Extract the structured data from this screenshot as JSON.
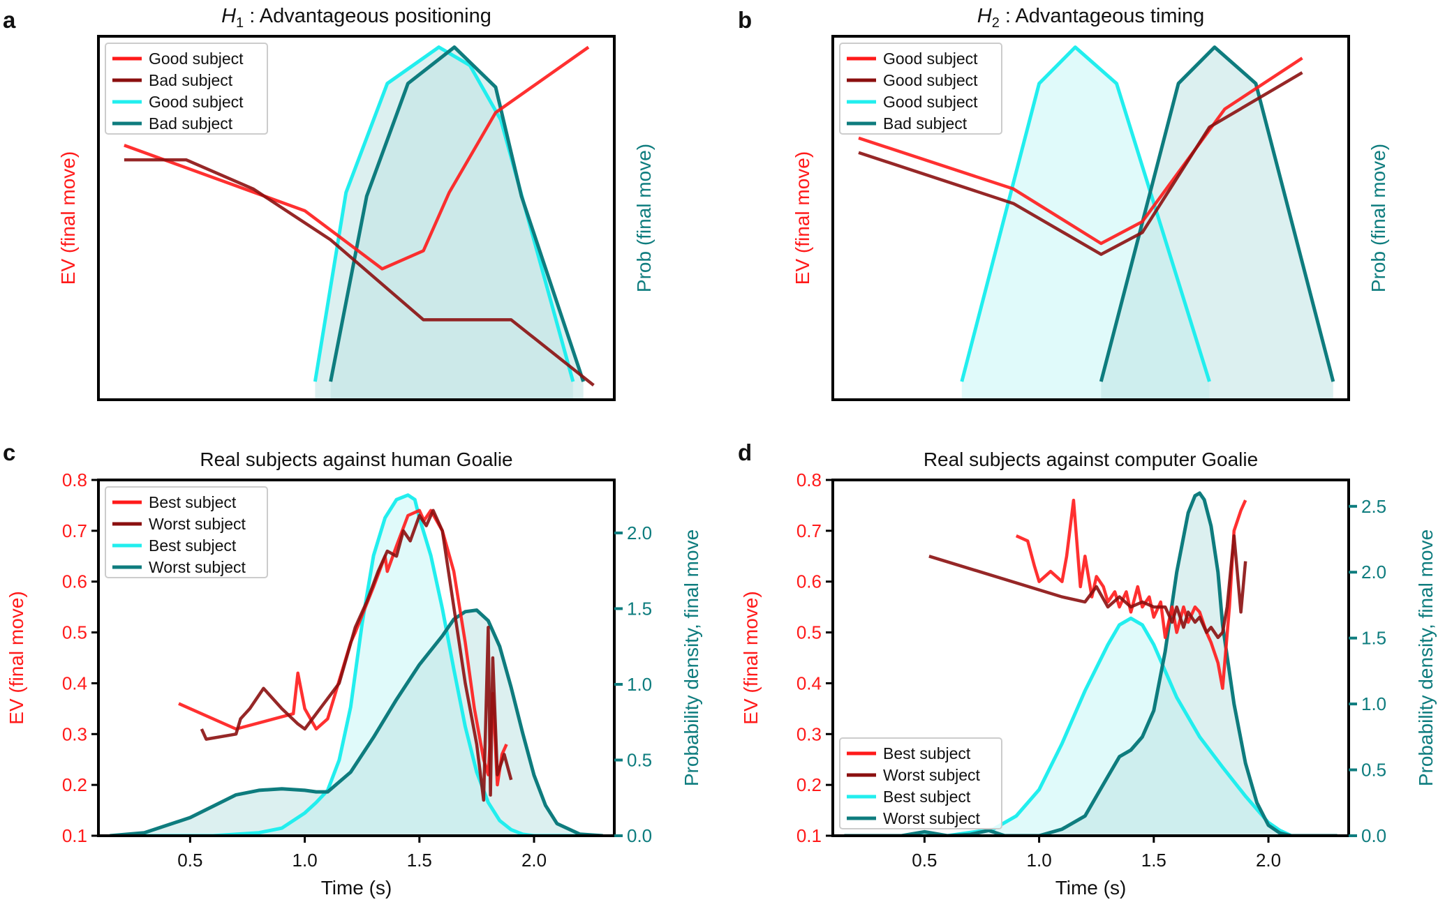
{
  "figure": {
    "colors": {
      "red": "#ff1a1a",
      "dark_red": "#8b0f0f",
      "cyan": "#22eeee",
      "teal": "#0e7c7e",
      "cyan_fill": "#c6f6f6",
      "teal_fill": "#bfe4e4",
      "text": "#111111"
    }
  },
  "chart_data": [
    {
      "id": "a",
      "panel_letter": "a",
      "type": "line",
      "title_symbol": "H",
      "title_subscript": "1",
      "title_rest": " : Advantageous positioning",
      "ylabel_left": "EV (final move)",
      "ylabel_right": "Prob (final move)",
      "xlim": [
        0,
        1
      ],
      "ylim_left": [
        0,
        1
      ],
      "ylim_right": [
        0,
        1
      ],
      "show_ticks": false,
      "legend": [
        "Good subject",
        "Bad subject",
        "Good subject",
        "Bad subject"
      ],
      "ev_series": [
        {
          "name": "Good subject",
          "color_key": "red",
          "x": [
            0.05,
            0.4,
            0.55,
            0.63,
            0.68,
            0.77,
            0.95
          ],
          "y": [
            0.7,
            0.52,
            0.36,
            0.41,
            0.57,
            0.79,
            0.97
          ]
        },
        {
          "name": "Bad subject",
          "color_key": "dark_red",
          "x": [
            0.05,
            0.17,
            0.3,
            0.45,
            0.63,
            0.8,
            0.96
          ],
          "y": [
            0.66,
            0.66,
            0.58,
            0.44,
            0.22,
            0.22,
            0.04
          ]
        }
      ],
      "prob_series": [
        {
          "name": "Good subject",
          "color_key": "cyan",
          "fill_key": "teal_fill",
          "x": [
            0.42,
            0.48,
            0.56,
            0.66,
            0.72,
            0.78,
            0.92
          ],
          "y": [
            0.05,
            0.57,
            0.87,
            0.97,
            0.92,
            0.77,
            0.05
          ]
        },
        {
          "name": "Bad subject",
          "color_key": "teal",
          "fill_key": "teal_fill",
          "x": [
            0.45,
            0.52,
            0.6,
            0.69,
            0.77,
            0.82,
            0.94
          ],
          "y": [
            0.05,
            0.56,
            0.87,
            0.97,
            0.86,
            0.56,
            0.05
          ]
        }
      ]
    },
    {
      "id": "b",
      "panel_letter": "b",
      "type": "line",
      "title_symbol": "H",
      "title_subscript": "2",
      "title_rest": " : Advantageous timing",
      "ylabel_left": "EV (final move)",
      "ylabel_right": "Prob (final move)",
      "xlim": [
        0,
        1
      ],
      "ylim_left": [
        0,
        1
      ],
      "ylim_right": [
        0,
        1
      ],
      "show_ticks": false,
      "legend": [
        "Good subject",
        "Good subject",
        "Good subject",
        "Bad subject"
      ],
      "ev_series": [
        {
          "name": "Good subject",
          "color_key": "red",
          "x": [
            0.05,
            0.35,
            0.52,
            0.6,
            0.76,
            0.91
          ],
          "y": [
            0.72,
            0.58,
            0.43,
            0.49,
            0.8,
            0.94
          ]
        },
        {
          "name": "Good subject",
          "color_key": "dark_red",
          "x": [
            0.05,
            0.35,
            0.52,
            0.6,
            0.73,
            0.91
          ],
          "y": [
            0.68,
            0.54,
            0.4,
            0.46,
            0.75,
            0.9
          ]
        }
      ],
      "prob_series": [
        {
          "name": "Good subject",
          "color_key": "cyan",
          "fill_key": "cyan_fill",
          "x": [
            0.25,
            0.4,
            0.47,
            0.55,
            0.73
          ],
          "y": [
            0.05,
            0.87,
            0.97,
            0.87,
            0.05
          ]
        },
        {
          "name": "Bad subject",
          "color_key": "teal",
          "fill_key": "teal_fill",
          "x": [
            0.52,
            0.67,
            0.74,
            0.82,
            0.97
          ],
          "y": [
            0.05,
            0.87,
            0.97,
            0.87,
            0.05
          ]
        }
      ]
    },
    {
      "id": "c",
      "panel_letter": "c",
      "type": "line",
      "title": "Real subjects against human Goalie",
      "xlabel": "Time (s)",
      "ylabel_left": "EV (final move)",
      "ylabel_right": "Probability density, final move",
      "xlim": [
        0.1,
        2.35
      ],
      "ylim_left": [
        0.1,
        0.8
      ],
      "ylim_right": [
        0.0,
        2.35
      ],
      "show_ticks": true,
      "xticks": [
        0.5,
        1.0,
        1.5,
        2.0
      ],
      "xtick_labels": [
        "0.5",
        "1.0",
        "1.5",
        "2.0"
      ],
      "yticks_left": [
        0.1,
        0.2,
        0.3,
        0.4,
        0.5,
        0.6,
        0.7,
        0.8
      ],
      "ytick_labels_left": [
        "0.1",
        "0.2",
        "0.3",
        "0.4",
        "0.5",
        "0.6",
        "0.7",
        "0.8"
      ],
      "yticks_right": [
        0.0,
        0.5,
        1.0,
        1.5,
        2.0
      ],
      "ytick_labels_right": [
        "0.0",
        "0.5",
        "1.0",
        "1.5",
        "2.0"
      ],
      "legend": [
        "Best subject",
        "Worst subject",
        "Best subject",
        "Worst subject"
      ],
      "ev_series": [
        {
          "name": "Best subject",
          "color_key": "red",
          "x": [
            0.45,
            0.7,
            0.95,
            0.97,
            1.0,
            1.05,
            1.1,
            1.2,
            1.22,
            1.3,
            1.35,
            1.36,
            1.4,
            1.45,
            1.5,
            1.52,
            1.55,
            1.6,
            1.65,
            1.7,
            1.74,
            1.78,
            1.8,
            1.82,
            1.84,
            1.86,
            1.88
          ],
          "y": [
            0.36,
            0.31,
            0.34,
            0.42,
            0.35,
            0.31,
            0.33,
            0.48,
            0.5,
            0.59,
            0.65,
            0.62,
            0.67,
            0.73,
            0.74,
            0.72,
            0.74,
            0.7,
            0.62,
            0.48,
            0.35,
            0.25,
            0.22,
            0.38,
            0.2,
            0.26,
            0.28
          ]
        },
        {
          "name": "Worst subject",
          "color_key": "dark_red",
          "x": [
            0.55,
            0.57,
            0.7,
            0.72,
            0.76,
            0.82,
            0.9,
            0.97,
            1.0,
            1.05,
            1.15,
            1.22,
            1.27,
            1.32,
            1.36,
            1.4,
            1.43,
            1.46,
            1.5,
            1.53,
            1.56,
            1.6,
            1.65,
            1.7,
            1.75,
            1.78,
            1.8,
            1.81,
            1.82,
            1.84,
            1.87,
            1.9
          ],
          "y": [
            0.31,
            0.29,
            0.3,
            0.33,
            0.35,
            0.39,
            0.35,
            0.32,
            0.31,
            0.34,
            0.4,
            0.51,
            0.56,
            0.62,
            0.66,
            0.65,
            0.7,
            0.68,
            0.73,
            0.71,
            0.74,
            0.7,
            0.55,
            0.4,
            0.28,
            0.17,
            0.51,
            0.18,
            0.45,
            0.22,
            0.26,
            0.21
          ]
        }
      ],
      "prob_series": [
        {
          "name": "Best subject",
          "color_key": "cyan",
          "fill_key": "cyan_fill",
          "x": [
            0.15,
            0.6,
            0.8,
            0.9,
            1.0,
            1.05,
            1.1,
            1.15,
            1.2,
            1.25,
            1.3,
            1.35,
            1.4,
            1.45,
            1.48,
            1.5,
            1.55,
            1.6,
            1.65,
            1.7,
            1.75,
            1.8,
            1.85,
            1.9,
            1.95,
            2.0,
            2.1,
            2.3
          ],
          "y": [
            0.0,
            0.0,
            0.02,
            0.05,
            0.15,
            0.22,
            0.3,
            0.5,
            0.85,
            1.4,
            1.85,
            2.1,
            2.22,
            2.25,
            2.22,
            2.1,
            1.85,
            1.5,
            1.1,
            0.72,
            0.42,
            0.22,
            0.1,
            0.04,
            0.01,
            0.0,
            0.0,
            0.0
          ]
        },
        {
          "name": "Worst subject",
          "color_key": "teal",
          "fill_key": "teal_fill",
          "x": [
            0.15,
            0.3,
            0.5,
            0.7,
            0.8,
            0.9,
            1.0,
            1.05,
            1.1,
            1.2,
            1.3,
            1.4,
            1.5,
            1.6,
            1.65,
            1.7,
            1.75,
            1.8,
            1.85,
            1.9,
            1.95,
            2.0,
            2.05,
            2.1,
            2.2,
            2.3
          ],
          "y": [
            0.0,
            0.02,
            0.12,
            0.27,
            0.3,
            0.31,
            0.3,
            0.29,
            0.29,
            0.42,
            0.65,
            0.9,
            1.13,
            1.32,
            1.43,
            1.48,
            1.49,
            1.42,
            1.25,
            0.98,
            0.68,
            0.4,
            0.2,
            0.08,
            0.01,
            0.0
          ]
        }
      ]
    },
    {
      "id": "d",
      "panel_letter": "d",
      "type": "line",
      "title": "Real subjects against computer Goalie",
      "xlabel": "Time (s)",
      "ylabel_left": "EV (final move)",
      "ylabel_right": "Probability density, final move",
      "xlim": [
        0.1,
        2.35
      ],
      "ylim_left": [
        0.1,
        0.8
      ],
      "ylim_right": [
        0.0,
        2.7
      ],
      "show_ticks": true,
      "xticks": [
        0.5,
        1.0,
        1.5,
        2.0
      ],
      "xtick_labels": [
        "0.5",
        "1.0",
        "1.5",
        "2.0"
      ],
      "yticks_left": [
        0.1,
        0.2,
        0.3,
        0.4,
        0.5,
        0.6,
        0.7,
        0.8
      ],
      "ytick_labels_left": [
        "0.1",
        "0.2",
        "0.3",
        "0.4",
        "0.5",
        "0.6",
        "0.7",
        "0.8"
      ],
      "yticks_right": [
        0.0,
        0.5,
        1.0,
        1.5,
        2.0,
        2.5
      ],
      "ytick_labels_right": [
        "0.0",
        "0.5",
        "1.0",
        "1.5",
        "2.0",
        "2.5"
      ],
      "legend": [
        "Best subject",
        "Worst subject",
        "Best subject",
        "Worst subject"
      ],
      "legend_position": "bottom-left",
      "ev_series": [
        {
          "name": "Best subject",
          "color_key": "red",
          "x": [
            0.9,
            0.95,
            0.98,
            1.0,
            1.05,
            1.1,
            1.12,
            1.15,
            1.18,
            1.2,
            1.23,
            1.25,
            1.28,
            1.3,
            1.33,
            1.35,
            1.38,
            1.4,
            1.43,
            1.45,
            1.48,
            1.5,
            1.53,
            1.55,
            1.58,
            1.6,
            1.63,
            1.65,
            1.68,
            1.7,
            1.73,
            1.75,
            1.78,
            1.8,
            1.83,
            1.85,
            1.88,
            1.9
          ],
          "y": [
            0.69,
            0.68,
            0.63,
            0.6,
            0.62,
            0.6,
            0.65,
            0.76,
            0.59,
            0.65,
            0.57,
            0.61,
            0.59,
            0.56,
            0.58,
            0.55,
            0.58,
            0.54,
            0.59,
            0.55,
            0.57,
            0.53,
            0.56,
            0.49,
            0.55,
            0.5,
            0.55,
            0.52,
            0.55,
            0.54,
            0.5,
            0.48,
            0.44,
            0.39,
            0.55,
            0.7,
            0.74,
            0.76
          ]
        },
        {
          "name": "Worst subject",
          "color_key": "dark_red",
          "x": [
            0.52,
            1.1,
            1.2,
            1.25,
            1.3,
            1.35,
            1.4,
            1.45,
            1.5,
            1.55,
            1.58,
            1.6,
            1.63,
            1.65,
            1.68,
            1.7,
            1.73,
            1.75,
            1.78,
            1.8,
            1.82,
            1.85,
            1.88,
            1.9
          ],
          "y": [
            0.65,
            0.57,
            0.56,
            0.59,
            0.55,
            0.57,
            0.55,
            0.56,
            0.55,
            0.55,
            0.52,
            0.55,
            0.51,
            0.54,
            0.52,
            0.53,
            0.5,
            0.51,
            0.49,
            0.5,
            0.55,
            0.69,
            0.54,
            0.64
          ]
        }
      ],
      "prob_series": [
        {
          "name": "Best subject",
          "color_key": "cyan",
          "fill_key": "cyan_fill",
          "x": [
            0.15,
            0.6,
            0.8,
            0.9,
            1.0,
            1.1,
            1.2,
            1.3,
            1.35,
            1.4,
            1.45,
            1.5,
            1.55,
            1.6,
            1.7,
            1.8,
            1.9,
            2.0,
            2.05,
            2.1,
            2.3
          ],
          "y": [
            0.0,
            0.0,
            0.05,
            0.15,
            0.35,
            0.7,
            1.1,
            1.45,
            1.6,
            1.65,
            1.6,
            1.45,
            1.25,
            1.05,
            0.75,
            0.52,
            0.3,
            0.1,
            0.04,
            0.0,
            0.0
          ]
        },
        {
          "name": "Worst subject",
          "color_key": "teal",
          "fill_key": "teal_fill",
          "x": [
            0.15,
            0.4,
            0.5,
            0.6,
            0.7,
            0.78,
            0.85,
            1.0,
            1.1,
            1.2,
            1.3,
            1.35,
            1.4,
            1.45,
            1.5,
            1.55,
            1.6,
            1.65,
            1.68,
            1.7,
            1.72,
            1.75,
            1.78,
            1.8,
            1.85,
            1.9,
            1.95,
            2.0,
            2.05,
            2.1,
            2.3
          ],
          "y": [
            0.0,
            0.0,
            0.03,
            0.0,
            0.01,
            0.04,
            0.0,
            0.0,
            0.05,
            0.15,
            0.45,
            0.6,
            0.65,
            0.75,
            0.95,
            1.4,
            2.0,
            2.45,
            2.58,
            2.6,
            2.55,
            2.35,
            2.0,
            1.6,
            1.0,
            0.55,
            0.25,
            0.08,
            0.02,
            0.0,
            0.0
          ]
        }
      ]
    }
  ]
}
